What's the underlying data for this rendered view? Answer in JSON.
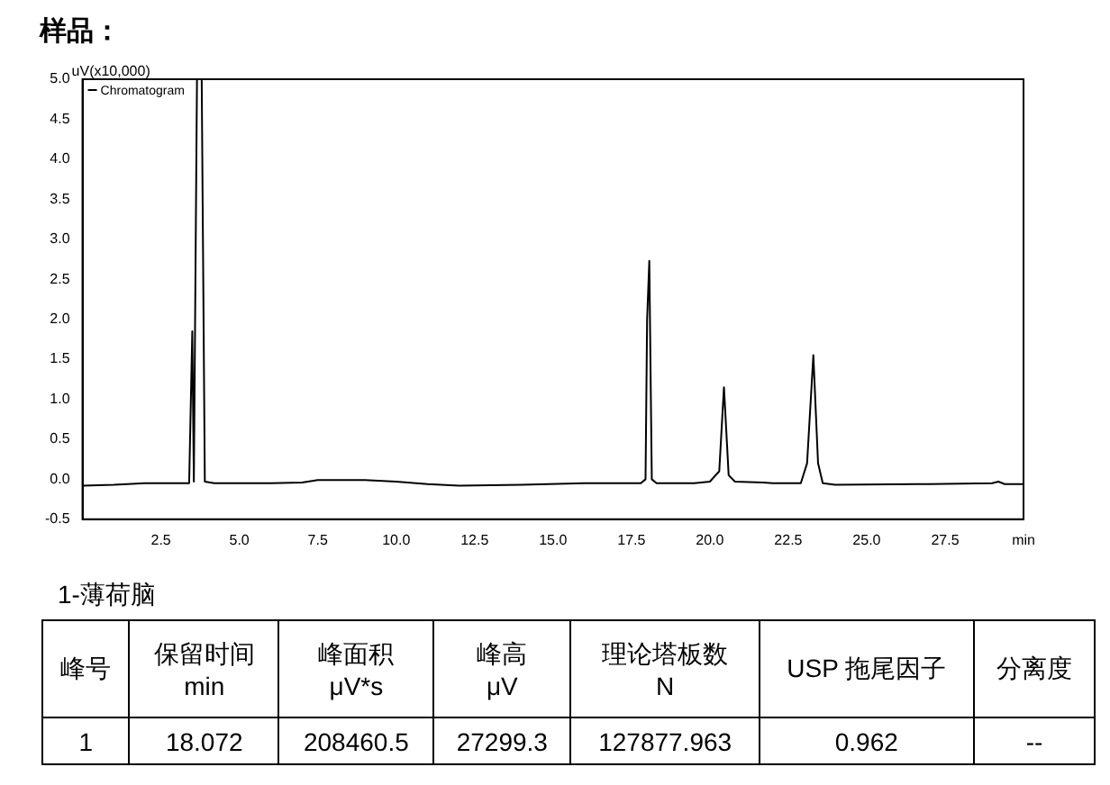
{
  "chart_data": {
    "type": "line",
    "title": "样品：",
    "ylabel": "uV(x10,000)",
    "x": [
      0,
      1,
      2,
      3,
      3.4,
      3.5,
      3.55,
      3.65,
      3.8,
      3.9,
      4.2,
      6,
      7,
      7.5,
      9,
      10,
      11,
      12,
      14,
      16,
      17.8,
      17.95,
      18.0,
      18.07,
      18.15,
      18.3,
      19.5,
      20.0,
      20.3,
      20.45,
      20.6,
      20.8,
      21.7,
      22.0,
      22.9,
      23.1,
      23.3,
      23.45,
      23.6,
      24,
      27,
      29,
      29.2,
      29.4,
      30
    ],
    "series": [
      {
        "name": "Chromatogram",
        "color": "#000000",
        "values": [
          -0.08,
          -0.07,
          -0.05,
          -0.05,
          -0.05,
          1.85,
          -0.03,
          5.0,
          5.0,
          -0.03,
          -0.05,
          -0.05,
          -0.04,
          -0.01,
          -0.01,
          -0.03,
          -0.06,
          -0.08,
          -0.07,
          -0.05,
          -0.05,
          0.0,
          2.0,
          2.73,
          0.0,
          -0.05,
          -0.05,
          -0.03,
          0.1,
          1.15,
          0.05,
          -0.03,
          -0.04,
          -0.05,
          -0.05,
          0.2,
          1.55,
          0.2,
          -0.05,
          -0.07,
          -0.06,
          -0.05,
          -0.03,
          -0.06,
          -0.06
        ]
      }
    ],
    "xlim": [
      0,
      30
    ],
    "xticks": [
      2.5,
      {
        "value": 5,
        "label": "5.0"
      },
      7.5,
      {
        "value": 10,
        "label": "10.0"
      },
      12.5,
      {
        "value": 15,
        "label": "15.0"
      },
      17.5,
      {
        "value": 20,
        "label": "20.0"
      },
      22.5,
      {
        "value": 25,
        "label": "25.0"
      },
      27.5,
      {
        "value": 30,
        "label": "min"
      }
    ],
    "ylim": [
      -0.5,
      5.0
    ],
    "yticks": [
      -0.5,
      {
        "value": 0,
        "label": "0.0"
      },
      0.5,
      {
        "value": 1,
        "label": "1.0"
      },
      1.5,
      {
        "value": 2,
        "label": "2.0"
      },
      2.5,
      {
        "value": 3,
        "label": "3.0"
      },
      3.5,
      {
        "value": 4,
        "label": "4.0"
      },
      4.5,
      {
        "value": 5,
        "label": "5.0"
      }
    ],
    "grid": false,
    "legend": "top left",
    "marker": "none",
    "line_style": "solid",
    "annotations": [
      "1-薄荷脑",
      "峰号",
      "保留时间\nmin",
      "峰面积\nμV*s",
      "峰高\nμV",
      "理论塔板数\nN",
      "USP 拖尾因子",
      "分离度",
      "1",
      "18.072",
      "208460.5",
      "27299.3",
      "127877.963",
      "0.962",
      "--"
    ]
  }
}
